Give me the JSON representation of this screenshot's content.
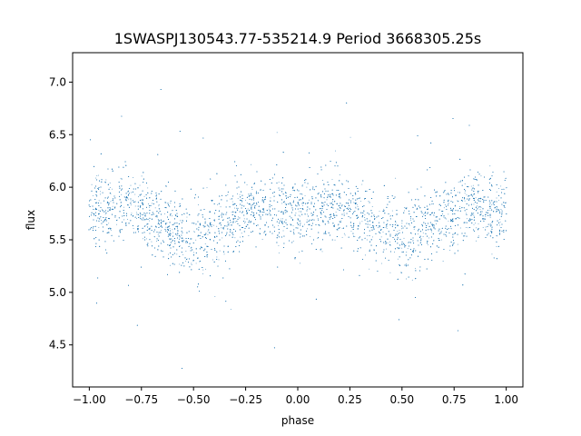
{
  "chart_data": {
    "type": "scatter",
    "title": "1SWASPJ130543.77-535214.9 Period 3668305.25s",
    "xlabel": "phase",
    "ylabel": "flux",
    "xlim": [
      -1.08,
      1.08
    ],
    "ylim": [
      4.1,
      7.28
    ],
    "xticks": [
      -1.0,
      -0.75,
      -0.5,
      -0.25,
      0.0,
      0.25,
      0.5,
      0.75,
      1.0
    ],
    "xtick_labels": [
      "−1.00",
      "−0.75",
      "−0.50",
      "−0.25",
      "0.00",
      "0.25",
      "0.50",
      "0.75",
      "1.00"
    ],
    "yticks": [
      4.5,
      5.0,
      5.5,
      6.0,
      6.5,
      7.0
    ],
    "ytick_labels": [
      "4.5",
      "5.0",
      "5.5",
      "6.0",
      "6.5",
      "7.0"
    ],
    "grid": false,
    "marker_color": "#1f77b4",
    "series": [
      {
        "x_range": [
          -1.0,
          1.0
        ],
        "profile": {
          "phase": [
            0.0,
            0.05,
            0.1,
            0.15,
            0.2,
            0.25,
            0.3,
            0.35,
            0.4,
            0.45,
            0.5
          ],
          "median_flux": [
            5.75,
            5.78,
            5.8,
            5.82,
            5.8,
            5.76,
            5.7,
            5.65,
            5.6,
            5.55,
            5.5
          ],
          "spread": [
            0.3,
            0.3,
            0.3,
            0.28,
            0.28,
            0.28,
            0.3,
            0.3,
            0.32,
            0.35,
            0.32
          ]
        },
        "outlier_range": [
          4.25,
          7.15
        ]
      }
    ]
  }
}
